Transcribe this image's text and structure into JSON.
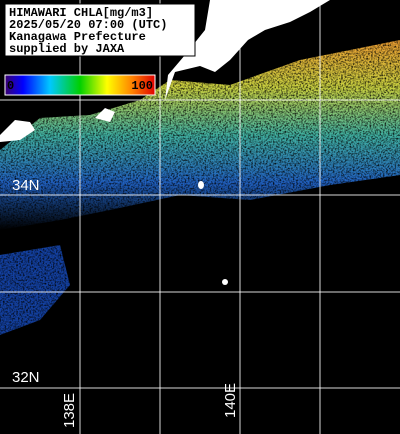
{
  "header": {
    "lines": [
      "HIMAWARI CHLA[mg/m3]",
      "2025/05/20 07:00 (UTC)",
      "Kanagawa Prefecture",
      "supplied by JAXA"
    ]
  },
  "colorbar": {
    "min_label": "0",
    "max_label": "100"
  },
  "grid_labels": {
    "lat": [
      "34N",
      "32N"
    ],
    "lon": [
      "138E",
      "140E"
    ]
  }
}
